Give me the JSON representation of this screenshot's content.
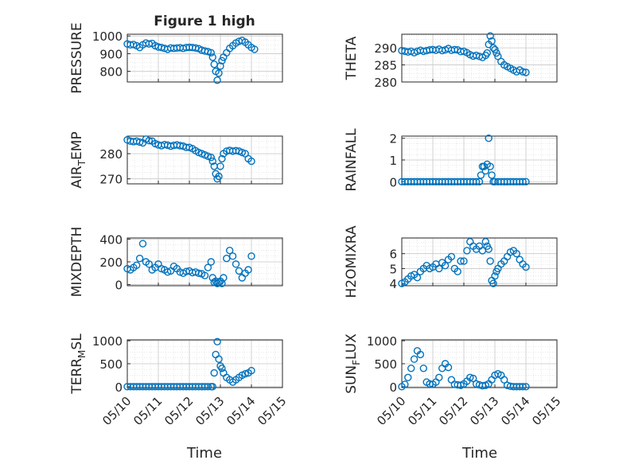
{
  "figure": {
    "title": "Figure 1 high",
    "xlabel": "Time",
    "x_ticks": [
      "05/10",
      "05/11",
      "05/12",
      "05/13",
      "05/14",
      "05/15"
    ],
    "marker_color": "#0072BD",
    "grid": "dotted minor+major"
  },
  "chart_data": [
    {
      "type": "scatter",
      "ylabel": "PRESSURE",
      "ylabel_sub": "",
      "ylim": [
        740,
        1010
      ],
      "yticks": [
        800,
        900,
        1000
      ],
      "x": [
        0.0,
        0.1,
        0.2,
        0.3,
        0.4,
        0.5,
        0.6,
        0.7,
        0.8,
        0.9,
        1.0,
        1.1,
        1.2,
        1.3,
        1.4,
        1.5,
        1.6,
        1.7,
        1.8,
        1.9,
        2.0,
        2.1,
        2.2,
        2.3,
        2.4,
        2.5,
        2.6,
        2.7,
        2.75,
        2.8,
        2.85,
        2.9,
        2.95,
        3.0,
        3.05,
        3.1,
        3.2,
        3.3,
        3.4,
        3.5,
        3.6,
        3.7,
        3.8,
        3.9,
        4.0,
        4.1
      ],
      "y": [
        955,
        950,
        952,
        945,
        935,
        950,
        960,
        955,
        958,
        945,
        938,
        935,
        930,
        925,
        932,
        930,
        932,
        934,
        930,
        935,
        936,
        935,
        932,
        928,
        920,
        915,
        912,
        905,
        880,
        840,
        800,
        750,
        790,
        830,
        860,
        880,
        905,
        930,
        945,
        960,
        970,
        975,
        965,
        950,
        935,
        925
      ]
    },
    {
      "type": "scatter",
      "ylabel": "THETA",
      "ylabel_sub": "",
      "ylim": [
        280,
        294
      ],
      "yticks": [
        280,
        285,
        290
      ],
      "x": [
        0.0,
        0.1,
        0.2,
        0.3,
        0.4,
        0.5,
        0.6,
        0.7,
        0.8,
        0.9,
        1.0,
        1.1,
        1.2,
        1.3,
        1.4,
        1.5,
        1.6,
        1.7,
        1.8,
        1.9,
        2.0,
        2.1,
        2.2,
        2.3,
        2.4,
        2.5,
        2.6,
        2.7,
        2.75,
        2.8,
        2.85,
        2.9,
        2.95,
        3.0,
        3.05,
        3.1,
        3.2,
        3.3,
        3.4,
        3.5,
        3.6,
        3.7,
        3.8,
        3.9,
        4.0
      ],
      "y": [
        289.2,
        289,
        288.8,
        289,
        288.6,
        289,
        289.3,
        289,
        289.2,
        289.4,
        289.5,
        289.3,
        289.6,
        289.2,
        289.4,
        289.8,
        289.3,
        289.5,
        289.4,
        288.9,
        289,
        288.6,
        288,
        287.6,
        287.8,
        287.5,
        287.2,
        287.8,
        288.5,
        291,
        293.5,
        292,
        290,
        289.5,
        288.5,
        287.5,
        286,
        285,
        284.5,
        284,
        283.5,
        283,
        283.5,
        283,
        282.8
      ]
    },
    {
      "type": "scatter",
      "ylabel": "AIR",
      "ylabel_sub": "T",
      "ylabel_rest": "EMP",
      "ylim": [
        268,
        287
      ],
      "yticks": [
        270,
        280
      ],
      "x": [
        0.0,
        0.1,
        0.2,
        0.3,
        0.4,
        0.5,
        0.6,
        0.7,
        0.8,
        0.9,
        1.0,
        1.1,
        1.2,
        1.3,
        1.4,
        1.5,
        1.6,
        1.7,
        1.8,
        1.9,
        2.0,
        2.1,
        2.2,
        2.3,
        2.4,
        2.5,
        2.6,
        2.7,
        2.75,
        2.8,
        2.85,
        2.9,
        2.95,
        3.0,
        3.05,
        3.1,
        3.2,
        3.3,
        3.4,
        3.5,
        3.6,
        3.7,
        3.8,
        3.9,
        4.0
      ],
      "y": [
        285.5,
        285,
        284.8,
        285,
        284.6,
        284.3,
        285.8,
        285.2,
        285,
        284,
        283.5,
        283.2,
        283.6,
        283.4,
        283,
        283.3,
        283.5,
        283.2,
        283,
        282.5,
        282.5,
        282,
        281.2,
        280.5,
        280,
        279.5,
        279,
        278.5,
        277,
        275,
        272,
        270,
        271,
        275,
        278,
        280,
        281,
        281.3,
        281,
        281.2,
        281,
        280.5,
        280,
        278,
        277
      ]
    },
    {
      "type": "scatter",
      "ylabel": "RAINFALL",
      "ylabel_sub": "",
      "ylim": [
        -0.1,
        2.1
      ],
      "yticks": [
        0,
        1,
        2
      ],
      "x": [
        0.0,
        0.1,
        0.2,
        0.3,
        0.4,
        0.5,
        0.6,
        0.7,
        0.8,
        0.9,
        1.0,
        1.1,
        1.2,
        1.3,
        1.4,
        1.5,
        1.6,
        1.7,
        1.8,
        1.9,
        2.0,
        2.1,
        2.2,
        2.3,
        2.4,
        2.5,
        2.55,
        2.6,
        2.65,
        2.7,
        2.75,
        2.8,
        2.85,
        2.9,
        2.95,
        3.0,
        3.1,
        3.2,
        3.3,
        3.4,
        3.5,
        3.6,
        3.7,
        3.8,
        3.9,
        4.0
      ],
      "y": [
        0,
        0,
        0,
        0,
        0,
        0,
        0,
        0,
        0,
        0,
        0,
        0,
        0,
        0,
        0,
        0,
        0,
        0,
        0,
        0,
        0,
        0,
        0,
        0,
        0,
        0,
        0.3,
        0.7,
        0.7,
        0.5,
        0.8,
        2.0,
        0.7,
        0.3,
        0,
        0,
        0,
        0,
        0,
        0,
        0,
        0,
        0,
        0,
        0,
        0
      ]
    },
    {
      "type": "scatter",
      "ylabel": "MIXDEPTH",
      "ylabel_sub": "",
      "ylim": [
        -10,
        410
      ],
      "yticks": [
        0,
        200,
        400
      ],
      "x": [
        0.0,
        0.1,
        0.2,
        0.3,
        0.4,
        0.5,
        0.6,
        0.7,
        0.8,
        0.9,
        1.0,
        1.1,
        1.2,
        1.3,
        1.4,
        1.5,
        1.6,
        1.7,
        1.8,
        1.9,
        2.0,
        2.1,
        2.2,
        2.3,
        2.4,
        2.5,
        2.6,
        2.7,
        2.75,
        2.8,
        2.85,
        2.9,
        2.95,
        3.0,
        3.05,
        3.1,
        3.2,
        3.3,
        3.4,
        3.5,
        3.6,
        3.7,
        3.8,
        3.9,
        4.0
      ],
      "y": [
        140,
        130,
        150,
        170,
        230,
        360,
        200,
        180,
        130,
        150,
        180,
        140,
        130,
        110,
        120,
        160,
        140,
        110,
        100,
        115,
        120,
        105,
        110,
        100,
        95,
        80,
        150,
        200,
        60,
        20,
        30,
        10,
        20,
        30,
        10,
        60,
        230,
        300,
        250,
        180,
        120,
        60,
        100,
        130,
        250
      ]
    },
    {
      "type": "scatter",
      "ylabel": "H2OMIXRA",
      "ylabel_sub": "",
      "ylim": [
        3.85,
        7.05
      ],
      "yticks": [
        4,
        5,
        6
      ],
      "x": [
        0.0,
        0.1,
        0.2,
        0.3,
        0.4,
        0.5,
        0.6,
        0.7,
        0.8,
        0.9,
        1.0,
        1.1,
        1.2,
        1.3,
        1.4,
        1.5,
        1.6,
        1.7,
        1.8,
        1.9,
        2.0,
        2.1,
        2.2,
        2.3,
        2.4,
        2.5,
        2.6,
        2.7,
        2.75,
        2.8,
        2.85,
        2.9,
        2.95,
        3.0,
        3.05,
        3.1,
        3.2,
        3.3,
        3.4,
        3.5,
        3.6,
        3.7,
        3.8,
        3.9,
        4.0
      ],
      "y": [
        4.0,
        4.1,
        4.3,
        4.5,
        4.6,
        4.4,
        4.8,
        5.0,
        5.2,
        5.0,
        5.1,
        5.3,
        5.0,
        5.4,
        5.2,
        5.6,
        5.8,
        5.0,
        4.8,
        5.5,
        5.5,
        6.2,
        6.8,
        6.5,
        6.3,
        6.5,
        6.2,
        6.8,
        6.5,
        6.3,
        5.5,
        4.2,
        4.0,
        4.5,
        4.8,
        5.0,
        5.3,
        5.5,
        5.8,
        6.1,
        6.2,
        6.0,
        5.6,
        5.3,
        5.1
      ]
    },
    {
      "type": "scatter",
      "ylabel": "TERR",
      "ylabel_sub": "M",
      "ylabel_rest": "SL",
      "ylim": [
        -20,
        1020
      ],
      "yticks": [
        0,
        500,
        1000
      ],
      "x": [
        0.0,
        0.1,
        0.2,
        0.3,
        0.4,
        0.5,
        0.6,
        0.7,
        0.8,
        0.9,
        1.0,
        1.1,
        1.2,
        1.3,
        1.4,
        1.5,
        1.6,
        1.7,
        1.8,
        1.9,
        2.0,
        2.1,
        2.2,
        2.3,
        2.4,
        2.5,
        2.6,
        2.7,
        2.75,
        2.8,
        2.85,
        2.9,
        2.95,
        3.0,
        3.05,
        3.1,
        3.2,
        3.3,
        3.4,
        3.5,
        3.6,
        3.7,
        3.8,
        3.9,
        4.0
      ],
      "y": [
        0,
        0,
        0,
        0,
        0,
        0,
        0,
        0,
        0,
        0,
        0,
        0,
        0,
        0,
        0,
        0,
        0,
        0,
        0,
        0,
        0,
        0,
        0,
        0,
        0,
        0,
        0,
        0,
        0,
        300,
        700,
        980,
        600,
        450,
        400,
        300,
        200,
        150,
        100,
        150,
        200,
        250,
        280,
        300,
        350
      ]
    },
    {
      "type": "scatter",
      "ylabel": "SUN",
      "ylabel_sub": "F",
      "ylabel_rest": "LUX",
      "ylim": [
        -20,
        1020
      ],
      "yticks": [
        0,
        500,
        1000
      ],
      "x": [
        0.0,
        0.1,
        0.2,
        0.3,
        0.4,
        0.5,
        0.6,
        0.7,
        0.8,
        0.9,
        1.0,
        1.1,
        1.2,
        1.3,
        1.4,
        1.5,
        1.6,
        1.7,
        1.8,
        1.9,
        2.0,
        2.1,
        2.2,
        2.3,
        2.4,
        2.5,
        2.6,
        2.7,
        2.8,
        2.9,
        3.0,
        3.1,
        3.2,
        3.3,
        3.4,
        3.5,
        3.6,
        3.7,
        3.8,
        3.9,
        4.0
      ],
      "y": [
        0,
        50,
        200,
        400,
        600,
        780,
        700,
        400,
        100,
        60,
        50,
        100,
        200,
        400,
        500,
        420,
        150,
        50,
        40,
        30,
        60,
        120,
        200,
        180,
        60,
        40,
        20,
        30,
        60,
        150,
        250,
        280,
        250,
        150,
        30,
        10,
        0,
        0,
        0,
        0,
        0
      ]
    }
  ]
}
